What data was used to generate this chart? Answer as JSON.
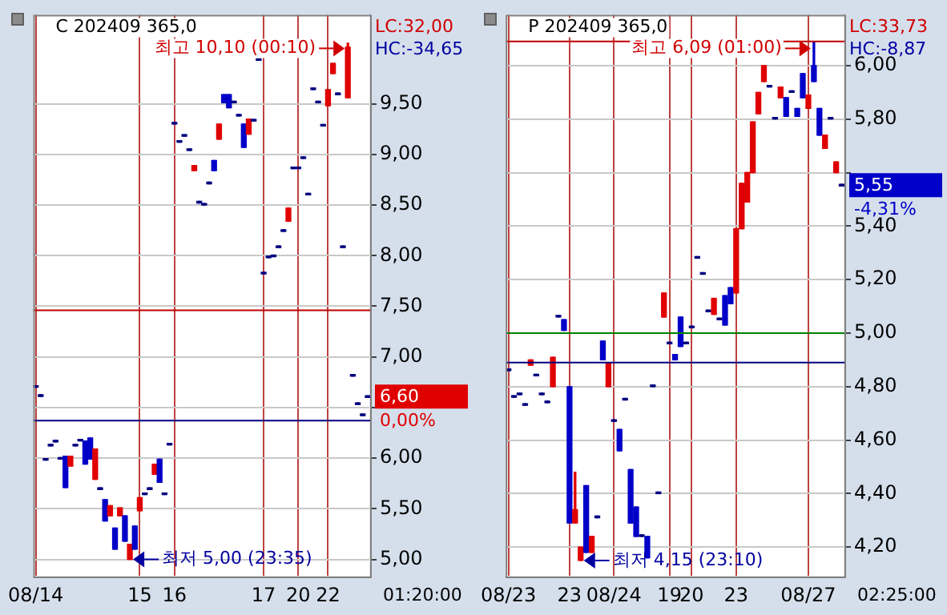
{
  "chart_data": [
    {
      "type": "candlestick",
      "title": "C 202409 365,0",
      "categories": [
        "08/14",
        null,
        null,
        null,
        null,
        null,
        null,
        null,
        null,
        null,
        null,
        null,
        null,
        null,
        null,
        null,
        null,
        null,
        null,
        null,
        null,
        "15",
        null,
        null,
        null,
        null,
        null,
        null,
        "16",
        null,
        null,
        null,
        null,
        null,
        null,
        null,
        null,
        null,
        null,
        null,
        null,
        null,
        null,
        null,
        null,
        null,
        "17",
        null,
        null,
        null,
        null,
        null,
        null,
        "20",
        null,
        null,
        null,
        null,
        null,
        "22",
        null,
        null,
        null,
        null,
        null,
        null,
        null,
        null
      ],
      "ohlc": [
        [
          6.7,
          6.7,
          6.7,
          6.7
        ],
        [
          6.61,
          6.61,
          6.61,
          6.61
        ],
        [
          5.98,
          5.98,
          5.98,
          5.98
        ],
        [
          6.12,
          6.12,
          6.12,
          6.12
        ],
        [
          6.16,
          6.16,
          6.16,
          6.16
        ],
        [
          5.99,
          5.99,
          5.99,
          5.99
        ],
        [
          6.02,
          6.02,
          5.71,
          5.71
        ],
        [
          5.92,
          6.02,
          5.92,
          6.02
        ],
        [
          6.12,
          6.12,
          6.12,
          6.12
        ],
        [
          6.17,
          6.17,
          6.17,
          6.17
        ],
        [
          6.17,
          6.17,
          5.94,
          5.94
        ],
        [
          6.2,
          6.2,
          5.99,
          5.99
        ],
        [
          5.79,
          6.09,
          5.79,
          6.09
        ],
        [
          5.69,
          5.69,
          5.69,
          5.69
        ],
        [
          5.59,
          5.59,
          5.38,
          5.38
        ],
        [
          5.43,
          5.53,
          5.43,
          5.53
        ],
        [
          5.31,
          5.31,
          5.1,
          5.1
        ],
        [
          5.43,
          5.51,
          5.43,
          5.51
        ],
        [
          5.43,
          5.43,
          5.18,
          5.18
        ],
        [
          5.0,
          5.15,
          5.0,
          5.15
        ],
        [
          5.33,
          5.33,
          5.1,
          5.1
        ],
        [
          5.48,
          5.61,
          5.48,
          5.61
        ],
        [
          5.64,
          5.64,
          5.64,
          5.64
        ],
        [
          5.69,
          5.69,
          5.69,
          5.69
        ],
        [
          5.84,
          5.94,
          5.84,
          5.94
        ],
        [
          5.99,
          5.99,
          5.76,
          5.76
        ],
        [
          5.64,
          5.64,
          5.64,
          5.64
        ],
        [
          6.13,
          6.13,
          6.13,
          6.13
        ],
        [
          9.3,
          9.3,
          9.3,
          9.3
        ],
        [
          9.12,
          9.12,
          9.12,
          9.12
        ],
        [
          9.18,
          9.18,
          9.18,
          9.18
        ],
        [
          9.04,
          9.04,
          9.04,
          9.04
        ],
        [
          8.84,
          8.89,
          8.84,
          8.89
        ],
        [
          8.52,
          8.52,
          8.52,
          8.52
        ],
        [
          8.5,
          8.5,
          8.5,
          8.5
        ],
        [
          8.71,
          8.71,
          8.71,
          8.71
        ],
        [
          8.94,
          8.94,
          8.84,
          8.84
        ],
        [
          9.15,
          9.3,
          9.15,
          9.3
        ],
        [
          9.59,
          9.59,
          9.51,
          9.51
        ],
        [
          9.59,
          9.59,
          9.46,
          9.46
        ],
        [
          9.51,
          9.51,
          9.51,
          9.51
        ],
        [
          9.38,
          9.38,
          9.38,
          9.38
        ],
        [
          9.3,
          9.3,
          9.07,
          9.07
        ],
        [
          9.2,
          9.35,
          9.2,
          9.35
        ],
        [
          9.33,
          9.33,
          9.33,
          9.33
        ],
        [
          9.93,
          9.93,
          9.93,
          9.93
        ],
        [
          7.82,
          7.82,
          7.82,
          7.82
        ],
        [
          7.98,
          7.98,
          7.98,
          7.98
        ],
        [
          7.99,
          7.99,
          7.99,
          7.99
        ],
        [
          8.08,
          8.08,
          8.08,
          8.08
        ],
        [
          8.24,
          8.24,
          8.24,
          8.24
        ],
        [
          8.34,
          8.47,
          8.34,
          8.47
        ],
        [
          8.86,
          8.86,
          8.86,
          8.86
        ],
        [
          8.86,
          8.86,
          8.86,
          8.86
        ],
        [
          8.96,
          8.96,
          8.96,
          8.96
        ],
        [
          8.6,
          8.6,
          8.6,
          8.6
        ],
        [
          9.64,
          9.64,
          9.64,
          9.64
        ],
        [
          9.51,
          9.51,
          9.51,
          9.51
        ],
        [
          9.28,
          9.28,
          9.28,
          9.28
        ],
        [
          9.48,
          9.64,
          9.48,
          9.64
        ],
        [
          9.8,
          9.9,
          9.8,
          9.9
        ],
        [
          9.59,
          9.59,
          9.59,
          9.59
        ],
        [
          8.08,
          8.08,
          8.08,
          8.08
        ],
        [
          9.56,
          10.1,
          9.56,
          10.06
        ],
        [
          6.81,
          6.81,
          6.81,
          6.81
        ],
        [
          6.53,
          6.53,
          6.53,
          6.53
        ],
        [
          6.42,
          6.42,
          6.42,
          6.42
        ],
        [
          6.6,
          6.6,
          6.6,
          6.6
        ]
      ],
      "ylim": [
        4.83,
        10.38
      ],
      "yticks": [
        {
          "value": 5,
          "label": "5,00"
        },
        {
          "value": 5.5,
          "label": "5,50"
        },
        {
          "value": 6,
          "label": "6,00"
        },
        {
          "value": 6.5,
          "label": null
        },
        {
          "value": 7,
          "label": "7,00"
        },
        {
          "value": 7.5,
          "label": "7,50"
        },
        {
          "value": 8,
          "label": "8,00"
        },
        {
          "value": 8.5,
          "label": "8,50"
        },
        {
          "value": 9,
          "label": "9,00"
        },
        {
          "value": 9.5,
          "label": "9,50"
        }
      ],
      "grid": true,
      "legend": false,
      "ref_lines": [
        {
          "axis": "y",
          "value": 7.46,
          "color": "#c00000"
        },
        {
          "axis": "y",
          "value": 6.37,
          "color": "#000080"
        }
      ],
      "annotations": [
        "LC:32,00",
        "HC:-34,65",
        "0,00%",
        "01:20:00",
        "최고 10,10 (00:10)",
        "최저 5,00 (23:35)",
        "6,60"
      ]
    },
    {
      "type": "candlestick",
      "title": "P 202409 365,0",
      "categories": [
        "08/23",
        null,
        null,
        null,
        null,
        null,
        null,
        null,
        null,
        null,
        null,
        "23",
        null,
        null,
        null,
        null,
        null,
        null,
        null,
        "08/24",
        null,
        null,
        null,
        null,
        null,
        null,
        null,
        null,
        null,
        "19",
        null,
        null,
        null,
        "20",
        null,
        null,
        null,
        null,
        null,
        null,
        null,
        "23",
        null,
        null,
        null,
        null,
        null,
        null,
        null,
        null,
        null,
        null,
        null,
        null,
        "08/27",
        null,
        null,
        null,
        null,
        null,
        null
      ],
      "ohlc": [
        [
          4.86,
          4.86,
          4.86,
          4.86
        ],
        [
          4.76,
          4.76,
          4.76,
          4.76
        ],
        [
          4.77,
          4.77,
          4.77,
          4.77
        ],
        [
          4.73,
          4.73,
          4.73,
          4.73
        ],
        [
          4.88,
          4.9,
          4.88,
          4.9
        ],
        [
          4.84,
          4.84,
          4.84,
          4.84
        ],
        [
          4.77,
          4.77,
          4.77,
          4.77
        ],
        [
          4.74,
          4.74,
          4.74,
          4.74
        ],
        [
          4.8,
          4.91,
          4.8,
          4.91
        ],
        [
          5.06,
          5.06,
          5.06,
          5.06
        ],
        [
          5.05,
          5.05,
          5.01,
          5.01
        ],
        [
          4.8,
          4.8,
          4.29,
          4.29
        ],
        [
          4.29,
          4.48,
          4.29,
          4.34
        ],
        [
          4.15,
          4.2,
          4.15,
          4.2
        ],
        [
          4.43,
          4.43,
          4.18,
          4.18
        ],
        [
          4.18,
          4.24,
          4.18,
          4.24
        ],
        [
          4.31,
          4.31,
          4.31,
          4.31
        ],
        [
          4.97,
          4.97,
          4.9,
          4.9
        ],
        [
          4.8,
          4.89,
          4.8,
          4.89
        ],
        [
          4.67,
          4.67,
          4.67,
          4.67
        ],
        [
          4.64,
          4.64,
          4.56,
          4.56
        ],
        [
          4.75,
          4.75,
          4.75,
          4.75
        ],
        [
          4.49,
          4.49,
          4.29,
          4.29
        ],
        [
          4.35,
          4.35,
          4.24,
          4.24
        ],
        [
          4.24,
          4.24,
          4.24,
          4.24
        ],
        [
          4.24,
          4.24,
          4.16,
          4.16
        ],
        [
          4.8,
          4.8,
          4.8,
          4.8
        ],
        [
          4.4,
          4.4,
          4.4,
          4.4
        ],
        [
          5.06,
          5.15,
          5.06,
          5.15
        ],
        [
          4.96,
          4.96,
          4.96,
          4.96
        ],
        [
          4.92,
          4.92,
          4.9,
          4.9
        ],
        [
          5.06,
          5.06,
          4.95,
          4.95
        ],
        [
          4.96,
          4.96,
          4.96,
          4.96
        ],
        [
          5.02,
          5.02,
          5.02,
          5.02
        ],
        [
          5.28,
          5.28,
          5.28,
          5.28
        ],
        [
          5.22,
          5.22,
          5.22,
          5.22
        ],
        [
          5.08,
          5.08,
          5.08,
          5.08
        ],
        [
          5.07,
          5.13,
          5.07,
          5.13
        ],
        [
          5.05,
          5.05,
          5.05,
          5.05
        ],
        [
          5.14,
          5.14,
          5.03,
          5.03
        ],
        [
          5.17,
          5.17,
          5.11,
          5.11
        ],
        [
          5.15,
          5.39,
          5.15,
          5.39
        ],
        [
          5.39,
          5.56,
          5.39,
          5.56
        ],
        [
          5.49,
          5.6,
          5.49,
          5.6
        ],
        [
          5.6,
          5.79,
          5.6,
          5.79
        ],
        [
          5.82,
          5.9,
          5.82,
          5.9
        ],
        [
          5.94,
          6.0,
          5.94,
          6.0
        ],
        [
          5.92,
          5.92,
          5.92,
          5.92
        ],
        [
          5.8,
          5.8,
          5.8,
          5.8
        ],
        [
          5.88,
          5.92,
          5.88,
          5.92
        ],
        [
          5.88,
          5.88,
          5.81,
          5.81
        ],
        [
          5.9,
          5.9,
          5.9,
          5.9
        ],
        [
          5.84,
          5.84,
          5.81,
          5.81
        ],
        [
          5.97,
          5.97,
          5.88,
          5.88
        ],
        [
          5.84,
          5.89,
          5.84,
          5.89
        ],
        [
          6.0,
          6.09,
          5.94,
          5.94
        ],
        [
          5.84,
          5.84,
          5.74,
          5.74
        ],
        [
          5.69,
          5.74,
          5.69,
          5.74
        ],
        [
          5.8,
          5.8,
          5.8,
          5.8
        ],
        [
          5.6,
          5.64,
          5.6,
          5.64
        ],
        [
          5.55,
          5.55,
          5.55,
          5.55
        ]
      ],
      "ylim": [
        4.09,
        6.19
      ],
      "yticks": [
        {
          "value": 4.2,
          "label": "4,20"
        },
        {
          "value": 4.4,
          "label": "4,40"
        },
        {
          "value": 4.6,
          "label": "4,60"
        },
        {
          "value": 4.8,
          "label": "4,80"
        },
        {
          "value": 5.0,
          "label": "5,00"
        },
        {
          "value": 5.2,
          "label": "5,20"
        },
        {
          "value": 5.4,
          "label": "5,40"
        },
        {
          "value": 5.6,
          "label": null
        },
        {
          "value": 5.8,
          "label": "5,80"
        },
        {
          "value": 6.0,
          "label": "6,00"
        }
      ],
      "grid": true,
      "legend": false,
      "ref_lines": [
        {
          "axis": "y",
          "value": 6.09,
          "color": "#c00000"
        },
        {
          "axis": "y",
          "value": 5.0,
          "color": "#008000"
        },
        {
          "axis": "y",
          "value": 4.89,
          "color": "#000080"
        }
      ],
      "annotations": [
        "LC:33,73",
        "HC:-8,87",
        "-4,31%",
        "02:25:00",
        "최고 6,09 (01:00)",
        "최저 4,15 (23:10)",
        "5,55"
      ]
    }
  ]
}
